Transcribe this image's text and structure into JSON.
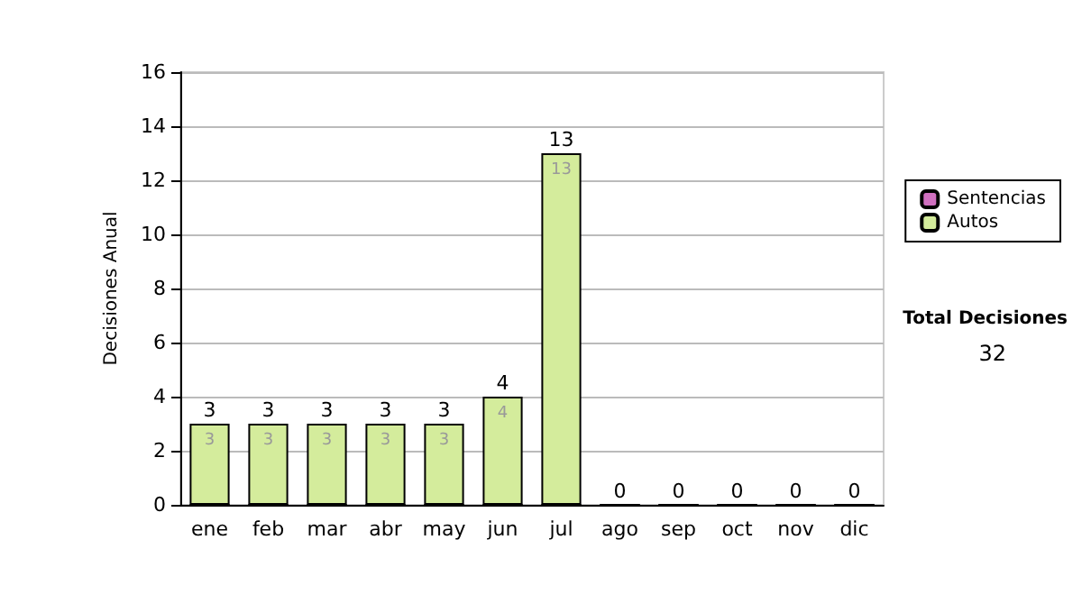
{
  "chart_data": {
    "type": "bar",
    "ylabel": "Decisiones Anual",
    "categories": [
      "ene",
      "feb",
      "mar",
      "abr",
      "may",
      "jun",
      "jul",
      "ago",
      "sep",
      "oct",
      "nov",
      "dic"
    ],
    "series": [
      {
        "name": "Sentencias",
        "color": "#d070c0",
        "values": [
          0,
          0,
          0,
          0,
          0,
          0,
          0,
          0,
          0,
          0,
          0,
          0
        ]
      },
      {
        "name": "Autos",
        "color": "#d4ec9c",
        "values": [
          3,
          3,
          3,
          3,
          3,
          4,
          13,
          0,
          0,
          0,
          0,
          0
        ],
        "value_labels": [
          "3",
          "3",
          "3",
          "3",
          "3",
          "4",
          "13",
          null,
          null,
          null,
          null,
          null
        ]
      }
    ],
    "stacked": true,
    "totals": [
      "3",
      "3",
      "3",
      "3",
      "3",
      "4",
      "13",
      "0",
      "0",
      "0",
      "0",
      "0"
    ],
    "ylim": [
      0,
      16
    ],
    "yticks": [
      0,
      2,
      4,
      6,
      8,
      10,
      12,
      14,
      16
    ],
    "grid": "y",
    "legend": "right",
    "annotations": [
      "Total Decisiones",
      "32"
    ]
  }
}
